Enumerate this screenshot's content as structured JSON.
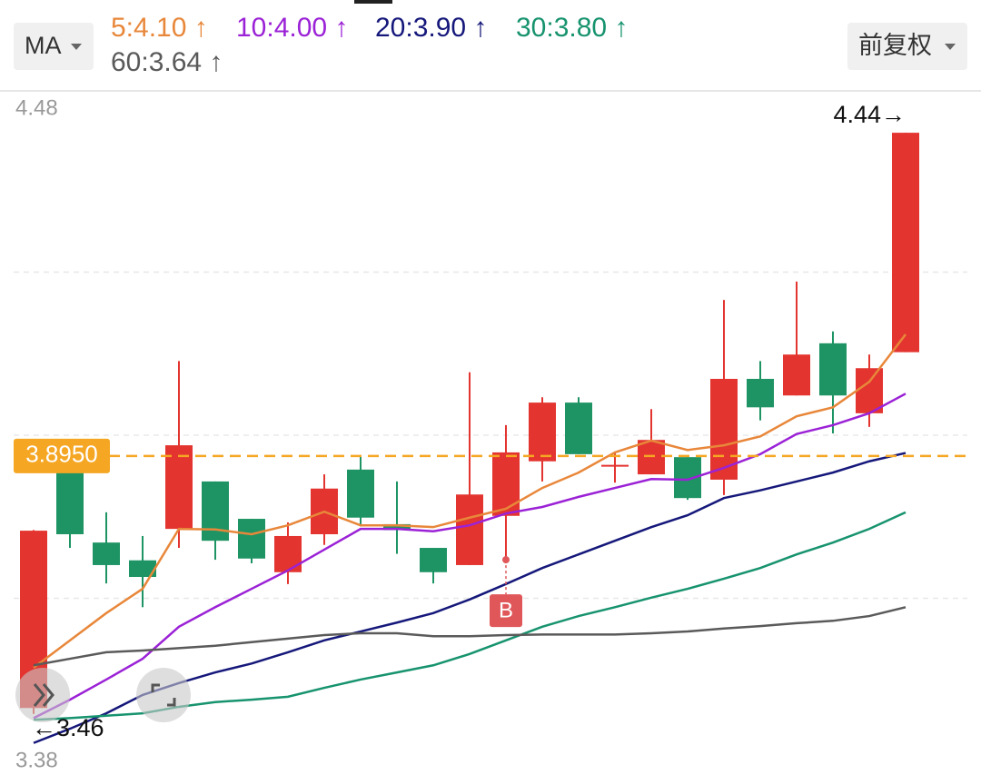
{
  "chart_data": {
    "type": "candlestick",
    "toolbar": {
      "indicator": "MA",
      "adjust": "前复权"
    },
    "ylim": [
      3.38,
      4.48
    ],
    "yticks": [
      4.48,
      3.38
    ],
    "up_color": "#e3342f",
    "down_color": "#1e9464",
    "open": [
      3.47,
      3.867,
      3.749,
      3.719,
      3.772,
      3.852,
      3.789,
      3.699,
      3.763,
      3.872,
      3.78,
      3.74,
      3.711,
      3.794,
      3.886,
      3.985,
      3.88,
      3.864,
      3.893,
      3.855,
      4.025,
      3.997,
      4.085,
      3.967,
      4.07
    ],
    "high": [
      3.77,
      3.89,
      3.8,
      3.76,
      4.055,
      3.852,
      3.789,
      3.783,
      3.864,
      3.895,
      3.852,
      3.74,
      4.036,
      3.947,
      3.994,
      3.994,
      3.9,
      3.974,
      3.893,
      4.158,
      4.055,
      4.189,
      4.105,
      4.066,
      4.44
    ],
    "low": [
      3.46,
      3.74,
      3.68,
      3.64,
      3.74,
      3.72,
      3.714,
      3.679,
      3.745,
      3.776,
      3.73,
      3.68,
      3.711,
      3.72,
      3.852,
      3.898,
      3.85,
      3.864,
      3.821,
      3.829,
      3.955,
      3.997,
      3.933,
      3.944,
      4.07
    ],
    "close": [
      3.769,
      3.763,
      3.711,
      3.691,
      3.913,
      3.752,
      3.722,
      3.76,
      3.84,
      3.791,
      3.77,
      3.699,
      3.83,
      3.901,
      3.985,
      3.898,
      3.88,
      3.922,
      3.824,
      4.025,
      3.977,
      4.066,
      3.997,
      4.043,
      4.44
    ],
    "ma_lines": [
      {
        "name": "5:4.10 ↑",
        "color": "#e8873a",
        "values": [
          3.538,
          3.584,
          3.63,
          3.671,
          3.772,
          3.771,
          3.763,
          3.778,
          3.801,
          3.778,
          3.778,
          3.775,
          3.791,
          3.806,
          3.841,
          3.867,
          3.901,
          3.921,
          3.905,
          3.913,
          3.928,
          3.962,
          3.977,
          4.02,
          4.1
        ]
      },
      {
        "name": "10:4.00 ↑",
        "color": "#9b22d6",
        "values": [
          3.453,
          3.484,
          3.518,
          3.553,
          3.607,
          3.64,
          3.671,
          3.702,
          3.737,
          3.772,
          3.772,
          3.768,
          3.778,
          3.798,
          3.809,
          3.826,
          3.841,
          3.856,
          3.855,
          3.875,
          3.898,
          3.932,
          3.947,
          3.967,
          4.0
        ]
      },
      {
        "name": "20:3.90 ↑",
        "color": "#15187a",
        "values": [
          3.411,
          3.435,
          3.461,
          3.492,
          3.512,
          3.53,
          3.545,
          3.564,
          3.584,
          3.599,
          3.614,
          3.63,
          3.653,
          3.679,
          3.706,
          3.729,
          3.752,
          3.775,
          3.795,
          3.824,
          3.837,
          3.852,
          3.867,
          3.886,
          3.9
        ]
      },
      {
        "name": "30:3.80 ↑",
        "color": "#17936e",
        "values": [
          3.45,
          3.453,
          3.457,
          3.461,
          3.472,
          3.48,
          3.484,
          3.489,
          3.504,
          3.518,
          3.53,
          3.542,
          3.561,
          3.584,
          3.607,
          3.625,
          3.64,
          3.656,
          3.671,
          3.688,
          3.706,
          3.729,
          3.749,
          3.772,
          3.8
        ]
      },
      {
        "name": "60:3.64 ↑",
        "color": "#5a5a5a",
        "values": [
          3.542,
          3.553,
          3.564,
          3.567,
          3.571,
          3.575,
          3.581,
          3.587,
          3.593,
          3.596,
          3.596,
          3.591,
          3.591,
          3.593,
          3.594,
          3.594,
          3.594,
          3.596,
          3.599,
          3.604,
          3.608,
          3.613,
          3.617,
          3.625,
          3.64
        ]
      }
    ],
    "current_price": {
      "value": 3.895,
      "label": "3.8950"
    },
    "max_label": "4.44→",
    "min_label": "←3.46",
    "signal": {
      "text": "B",
      "index": 13
    }
  }
}
